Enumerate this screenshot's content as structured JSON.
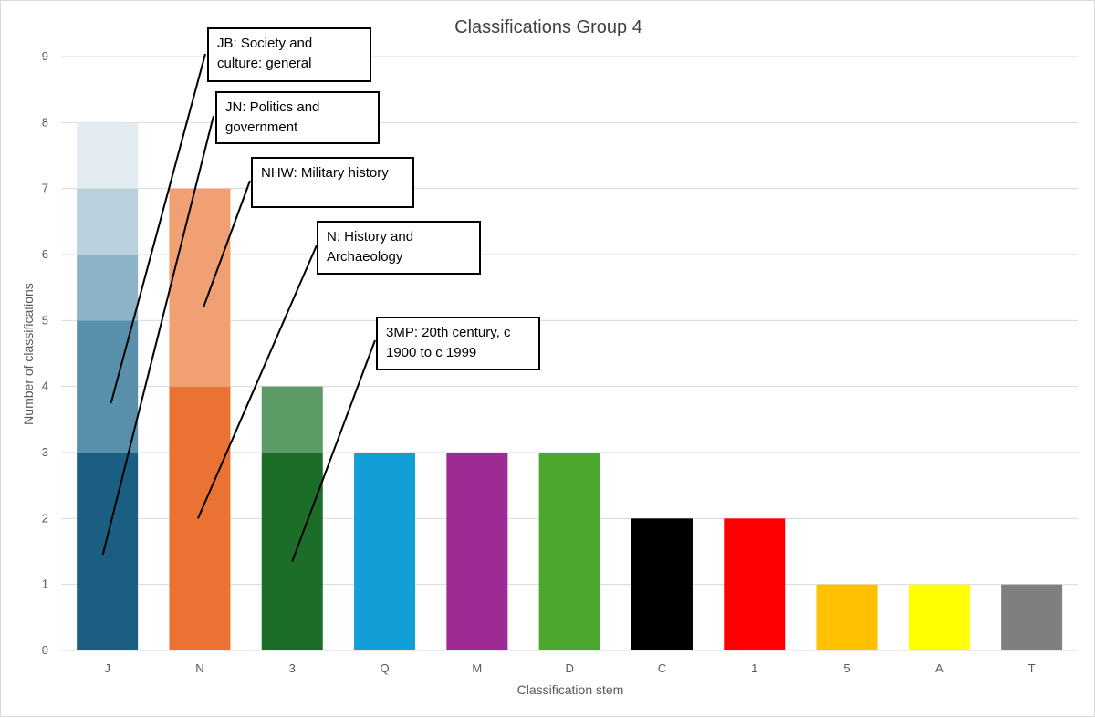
{
  "chart_data": {
    "type": "bar",
    "title": "Classifications Group 4",
    "xlabel": "Classification stem",
    "ylabel": "Number of classifications",
    "ylim": [
      0,
      9
    ],
    "yticks": [
      0,
      1,
      2,
      3,
      4,
      5,
      6,
      7,
      8,
      9
    ],
    "grid": true,
    "categories": [
      "J",
      "N",
      "3",
      "Q",
      "M",
      "D",
      "C",
      "1",
      "5",
      "A",
      "T"
    ],
    "values": [
      8,
      7,
      4,
      3,
      3,
      3,
      2,
      2,
      1,
      1,
      1
    ],
    "stacked_segments": [
      [
        {
          "value": 3,
          "color": "#1a5e82"
        },
        {
          "value": 2,
          "color": "#5890ab"
        },
        {
          "value": 1,
          "color": "#8db3c6"
        },
        {
          "value": 1,
          "color": "#b9d0dd"
        },
        {
          "value": 1,
          "color": "#e3ecf1"
        }
      ],
      [
        {
          "value": 4,
          "color": "#ea7232"
        },
        {
          "value": 3,
          "color": "#f0a073"
        }
      ],
      [
        {
          "value": 3,
          "color": "#1b6d28"
        },
        {
          "value": 1,
          "color": "#5c9b65"
        }
      ],
      [
        {
          "value": 3,
          "color": "#129ed6"
        }
      ],
      [
        {
          "value": 3,
          "color": "#9e2a93"
        }
      ],
      [
        {
          "value": 3,
          "color": "#4ca72e"
        }
      ],
      [
        {
          "value": 2,
          "color": "#000000"
        }
      ],
      [
        {
          "value": 2,
          "color": "#ff0000"
        }
      ],
      [
        {
          "value": 1,
          "color": "#ffc000"
        }
      ],
      [
        {
          "value": 1,
          "color": "#ffff00"
        }
      ],
      [
        {
          "value": 1,
          "color": "#7f7f7f"
        }
      ]
    ],
    "annotations": [
      {
        "text": "JB: Society and culture: general",
        "lines": [
          "JB: Society and",
          "culture: general"
        ],
        "points_to": {
          "category": "J",
          "value": 3.75
        }
      },
      {
        "text": "JN: Politics and government",
        "lines": [
          "JN: Politics and",
          "government"
        ],
        "points_to": {
          "category": "J",
          "value": 1.45
        }
      },
      {
        "text": "NHW: Military history",
        "lines": [
          "NHW: Military history"
        ],
        "points_to": {
          "category": "N",
          "value": 5.2
        }
      },
      {
        "text": "N: History and Archaeology",
        "lines": [
          "N: History and",
          "Archaeology"
        ],
        "points_to": {
          "category": "N",
          "value": 2.0
        }
      },
      {
        "text": "3MP: 20th century, c 1900 to c 1999",
        "lines": [
          "3MP: 20th century, c",
          "1900 to c 1999"
        ],
        "points_to": {
          "category": "3",
          "value": 1.35
        }
      }
    ]
  }
}
